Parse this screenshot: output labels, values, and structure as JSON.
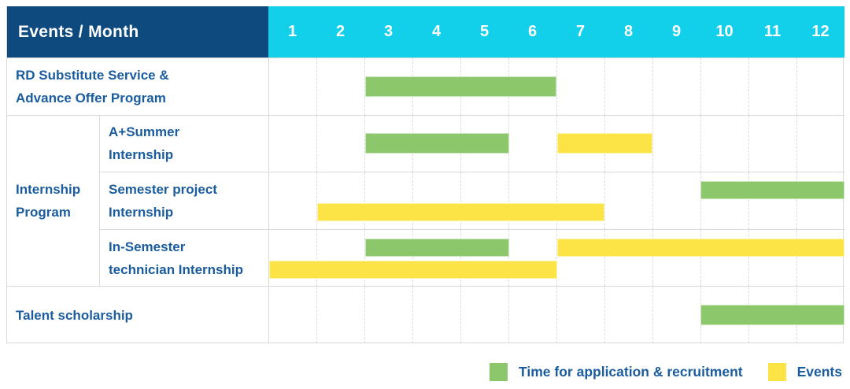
{
  "header": {
    "title": "Events / Month",
    "months": [
      "1",
      "2",
      "3",
      "4",
      "5",
      "6",
      "7",
      "8",
      "9",
      "10",
      "11",
      "12"
    ]
  },
  "chart_data": {
    "type": "gantt",
    "x_axis_label": "Events / Month",
    "months": [
      1,
      2,
      3,
      4,
      5,
      6,
      7,
      8,
      9,
      10,
      11,
      12
    ],
    "rows": [
      {
        "group": "",
        "label": "RD Substitute Service & Advance Offer Program",
        "lines": [
          "RD Substitute Service &",
          "Advance Offer Program"
        ],
        "bars": [
          {
            "color": "green",
            "start": 3,
            "end": 6,
            "lane": "mid"
          }
        ]
      },
      {
        "group": "Internship Program",
        "label": "A+Summer Internship",
        "lines": [
          "A+Summer",
          "Internship"
        ],
        "bars": [
          {
            "color": "green",
            "start": 3,
            "end": 5,
            "lane": "mid"
          },
          {
            "color": "yellow",
            "start": 7,
            "end": 8,
            "lane": "mid"
          }
        ]
      },
      {
        "group": "Internship Program",
        "label": "Semester project Internship",
        "lines": [
          "Semester project",
          "Internship"
        ],
        "bars": [
          {
            "color": "green",
            "start": 10,
            "end": 12,
            "lane": "top"
          },
          {
            "color": "yellow",
            "start": 2,
            "end": 7,
            "lane": "bottom"
          }
        ]
      },
      {
        "group": "Internship Program",
        "label": "In-Semester technician Internship",
        "lines": [
          "In-Semester",
          "technician Internship"
        ],
        "bars": [
          {
            "color": "green",
            "start": 3,
            "end": 5,
            "lane": "top"
          },
          {
            "color": "yellow",
            "start": 7,
            "end": 12,
            "lane": "top"
          },
          {
            "color": "yellow",
            "start": 1,
            "end": 6,
            "lane": "bottom"
          }
        ]
      },
      {
        "group": "",
        "label": "Talent scholarship",
        "lines": [
          "Talent scholarship"
        ],
        "bars": [
          {
            "color": "green",
            "start": 10,
            "end": 12,
            "lane": "mid"
          }
        ]
      }
    ],
    "group_lines": [
      "Internship",
      "Program"
    ]
  },
  "legend": [
    {
      "color_name": "green",
      "color": "#8cc76c",
      "label": "Time for application & recruitment"
    },
    {
      "color_name": "yellow",
      "color": "#fde446",
      "label": "Events"
    }
  ],
  "colors": {
    "header_navy": "#0e4a7e",
    "header_cyan": "#12cfea",
    "bar_green": "#8cc76c",
    "bar_yellow": "#fde446",
    "text_blue": "#1a5c9e",
    "grid_line": "#d9d9d9"
  }
}
